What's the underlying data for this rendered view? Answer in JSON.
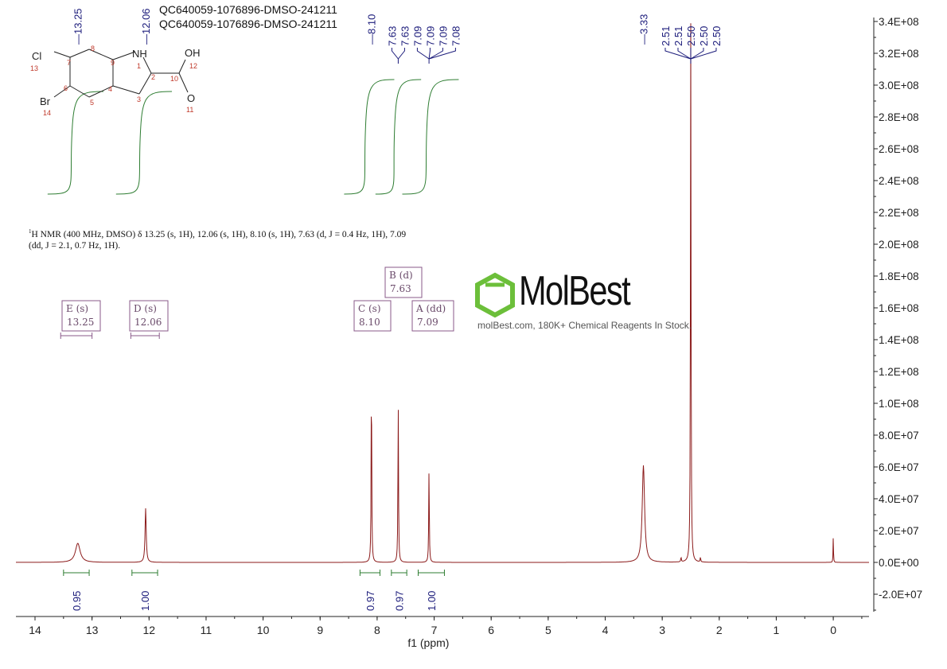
{
  "titles": [
    "QC640059-1076896-DMSO-241211",
    "QC640059-1076896-DMSO-241211"
  ],
  "nmr_description": {
    "line1_sup": "1",
    "line1": "H NMR (400 MHz, DMSO) δ 13.25 (s, 1H), 12.06 (s, 1H), 8.10 (s, 1H), 7.63 (d, J = 0.4 Hz, 1H), 7.09",
    "line2": "(dd, J = 2.1, 0.7 Hz, 1H)."
  },
  "watermark": {
    "brand": "MolBest",
    "tagline": "molBest.com, 180K+ Chemical Reagents In Stock.",
    "color": "#6cbf3a"
  },
  "structure": {
    "atoms": [
      "Cl",
      "13",
      "7",
      "8",
      "9",
      "NH",
      "1",
      "2",
      "10",
      "OH",
      "12",
      "O",
      "11",
      "3",
      "4",
      "5",
      "6",
      "Br",
      "14"
    ]
  },
  "chart_data": {
    "type": "line",
    "xlabel": "f1 (ppm)",
    "ylabel": "",
    "xlim": [
      14.33,
      -0.63
    ],
    "ylim": [
      -34000000.0,
      340000000.0
    ],
    "x_ticks": [
      14,
      13,
      12,
      11,
      10,
      9,
      8,
      7,
      6,
      5,
      4,
      3,
      2,
      1,
      0
    ],
    "y_ticks": [
      "3.4E+08",
      "3.2E+08",
      "3.0E+08",
      "2.8E+08",
      "2.6E+08",
      "2.4E+08",
      "2.2E+08",
      "2.0E+08",
      "1.8E+08",
      "1.6E+08",
      "1.4E+08",
      "1.2E+08",
      "1.0E+08",
      "8.0E+07",
      "6.0E+07",
      "4.0E+07",
      "2.0E+07",
      "0.0E+00",
      "-2.0E+07"
    ],
    "y_tick_values": [
      340000000.0,
      320000000.0,
      300000000.0,
      280000000.0,
      260000000.0,
      240000000.0,
      220000000.0,
      200000000.0,
      180000000.0,
      160000000.0,
      140000000.0,
      120000000.0,
      100000000.0,
      80000000.0,
      60000000.0,
      40000000.0,
      20000000.0,
      0,
      -20000000.0
    ],
    "line_color": "#8b1a1a",
    "integral_color": "#2e7d32",
    "label_color": "#1a1a7a",
    "peaks": [
      {
        "ppm": 13.25,
        "height": 12000000.0,
        "width": 0.05
      },
      {
        "ppm": 12.06,
        "height": 34000000.0,
        "width": 0.012
      },
      {
        "ppm": 8.1,
        "height": 119000000.0,
        "width": 0.006
      },
      {
        "ppm": 7.63,
        "height": 100000000.0,
        "width": 0.006
      },
      {
        "ppm": 7.09,
        "height": 59000000.0,
        "width": 0.006
      },
      {
        "ppm": 3.33,
        "height": 61000000.0,
        "width": 0.025
      },
      {
        "ppm": 2.5,
        "height": 340000000.0,
        "width": 0.006
      },
      {
        "ppm": 2.67,
        "height": 3000000.0,
        "width": 0.006
      },
      {
        "ppm": 2.33,
        "height": 3000000.0,
        "width": 0.006
      },
      {
        "ppm": 0.0,
        "height": 17000000.0,
        "width": 0.004
      }
    ],
    "peak_label_groups": [
      {
        "labels": [
          "13.25"
        ],
        "at": 13.25
      },
      {
        "labels": [
          "12.06"
        ],
        "at": 12.06
      },
      {
        "labels": [
          "8.10"
        ],
        "at": 8.1
      },
      {
        "labels": [
          "7.63",
          "7.63"
        ],
        "at": 7.63
      },
      {
        "labels": [
          "7.09",
          "7.09",
          "7.09",
          "7.08"
        ],
        "at": 7.09
      },
      {
        "labels": [
          "3.33"
        ],
        "at": 3.33
      },
      {
        "labels": [
          "2.51",
          "2.51",
          "2.50",
          "2.50",
          "2.50"
        ],
        "at": 2.5
      }
    ],
    "integrals": [
      {
        "from": 13.5,
        "to": 13.05,
        "value": "0.95"
      },
      {
        "from": 12.3,
        "to": 11.85,
        "value": "1.00"
      },
      {
        "from": 8.3,
        "to": 7.95,
        "value": "0.97"
      },
      {
        "from": 7.75,
        "to": 7.48,
        "value": "0.97"
      },
      {
        "from": 7.28,
        "to": 6.82,
        "value": "1.00"
      }
    ],
    "multiplets": [
      {
        "name": "E (s)",
        "shift": "13.25",
        "at": 13.25,
        "range": [
          13.55,
          13.0
        ]
      },
      {
        "name": "D (s)",
        "shift": "12.06",
        "at": 12.06,
        "range": [
          12.32,
          11.82
        ]
      },
      {
        "name": "C (s)",
        "shift": "8.10",
        "at": 8.1
      },
      {
        "name": "B (d)",
        "shift": "7.63",
        "at": 7.63
      },
      {
        "name": "A (dd)",
        "shift": "7.09",
        "at": 7.09
      }
    ]
  }
}
